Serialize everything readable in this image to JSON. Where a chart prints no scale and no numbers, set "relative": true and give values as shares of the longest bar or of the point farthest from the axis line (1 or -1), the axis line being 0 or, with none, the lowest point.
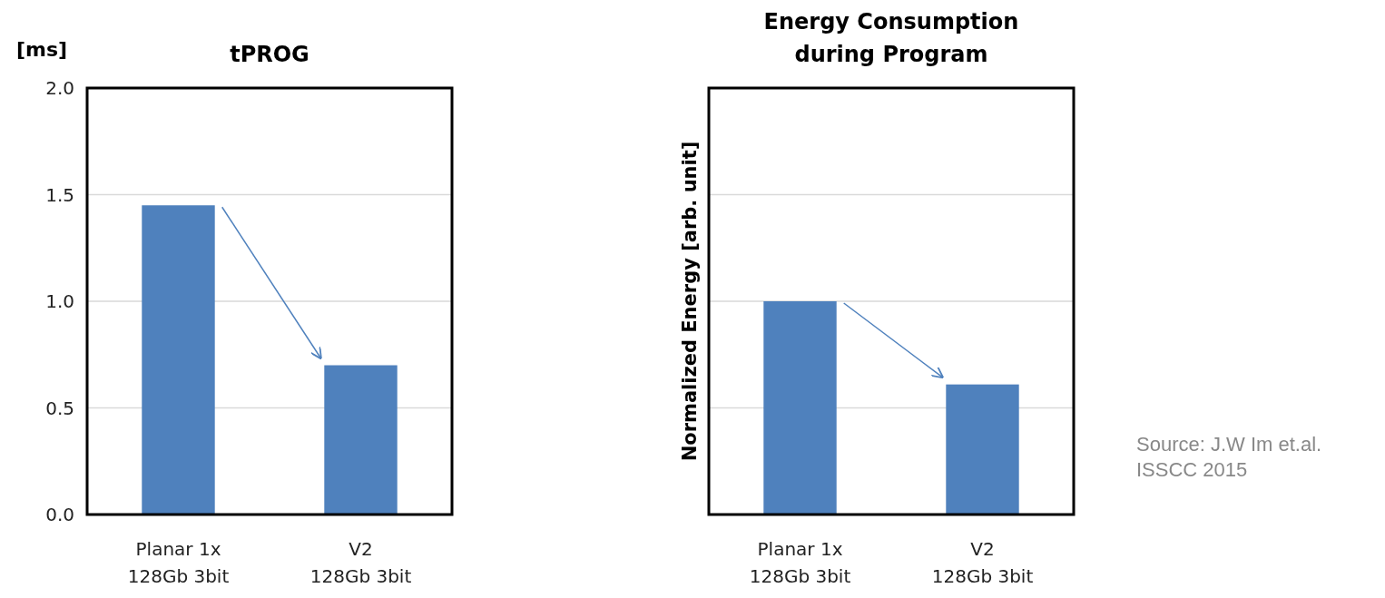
{
  "chart_data": [
    {
      "type": "bar",
      "title": "tPROG",
      "ylabel": "[ms]",
      "categories": [
        "Planar 1x\n128Gb 3bit",
        "V2\n128Gb 3bit"
      ],
      "values": [
        1.45,
        0.7
      ],
      "color": "#4f81bd",
      "ylim": [
        0,
        2
      ],
      "yticks": [
        {
          "value": 0,
          "label": "0.0"
        },
        0.5,
        {
          "value": 1,
          "label": "1.0"
        },
        1.5,
        {
          "value": 2,
          "label": "2.0"
        }
      ],
      "grid": "y"
    },
    {
      "type": "bar",
      "title": "Energy Consumption\nduring Program",
      "ylabel": "Normalized  Energy [arb. unit]",
      "categories": [
        "Planar 1x\n128Gb 3bit",
        "V2\n128Gb 3bit"
      ],
      "values": [
        1,
        0.61
      ],
      "color": "#4f81bd",
      "relative": true,
      "ref_lines": [
        {
          "axis": "y",
          "value": 0.5,
          "color": "#d9d9d9"
        },
        {
          "axis": "y",
          "value": 1,
          "color": "#d9d9d9"
        },
        {
          "axis": "y",
          "value": 1.5,
          "color": "#d9d9d9"
        }
      ],
      "annotations": [
        "Source: J.W Im et.al.\nISSCC 2015"
      ]
    }
  ]
}
